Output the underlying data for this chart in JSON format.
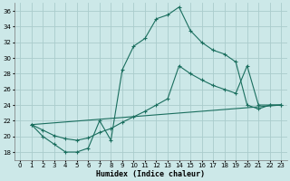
{
  "xlabel": "Humidex (Indice chaleur)",
  "background_color": "#cce8e8",
  "grid_color": "#aacccc",
  "line_color": "#1a6e5e",
  "xlim": [
    -0.5,
    23.5
  ],
  "ylim": [
    17,
    37
  ],
  "xticks": [
    0,
    1,
    2,
    3,
    4,
    5,
    6,
    7,
    8,
    9,
    10,
    11,
    12,
    13,
    14,
    15,
    16,
    17,
    18,
    19,
    20,
    21,
    22,
    23
  ],
  "yticks": [
    18,
    20,
    22,
    24,
    26,
    28,
    30,
    32,
    34,
    36
  ],
  "series1_x": [
    1,
    2,
    3,
    4,
    5,
    6,
    7,
    8,
    9,
    10,
    11,
    12,
    13,
    14,
    15,
    16,
    17,
    18,
    19,
    20,
    21,
    22,
    23
  ],
  "series1_y": [
    21.5,
    20.0,
    19.0,
    18.0,
    18.0,
    18.5,
    22.0,
    19.5,
    28.5,
    31.5,
    32.5,
    35.0,
    35.5,
    36.5,
    33.5,
    32.0,
    31.0,
    30.5,
    29.5,
    24.0,
    23.5,
    24.0,
    24.0
  ],
  "series2_x": [
    1,
    2,
    3,
    4,
    5,
    6,
    7,
    8,
    9,
    10,
    11,
    12,
    13,
    14,
    15,
    16,
    17,
    18,
    19,
    20,
    21,
    22,
    23
  ],
  "series2_y": [
    21.5,
    20.8,
    20.1,
    19.7,
    19.5,
    19.8,
    20.5,
    21.0,
    21.8,
    22.5,
    23.2,
    24.0,
    24.8,
    29.0,
    28.0,
    27.2,
    26.5,
    26.0,
    25.5,
    29.0,
    24.0,
    24.0,
    24.0
  ],
  "series3_x": [
    1,
    23
  ],
  "series3_y": [
    21.5,
    24.0
  ]
}
